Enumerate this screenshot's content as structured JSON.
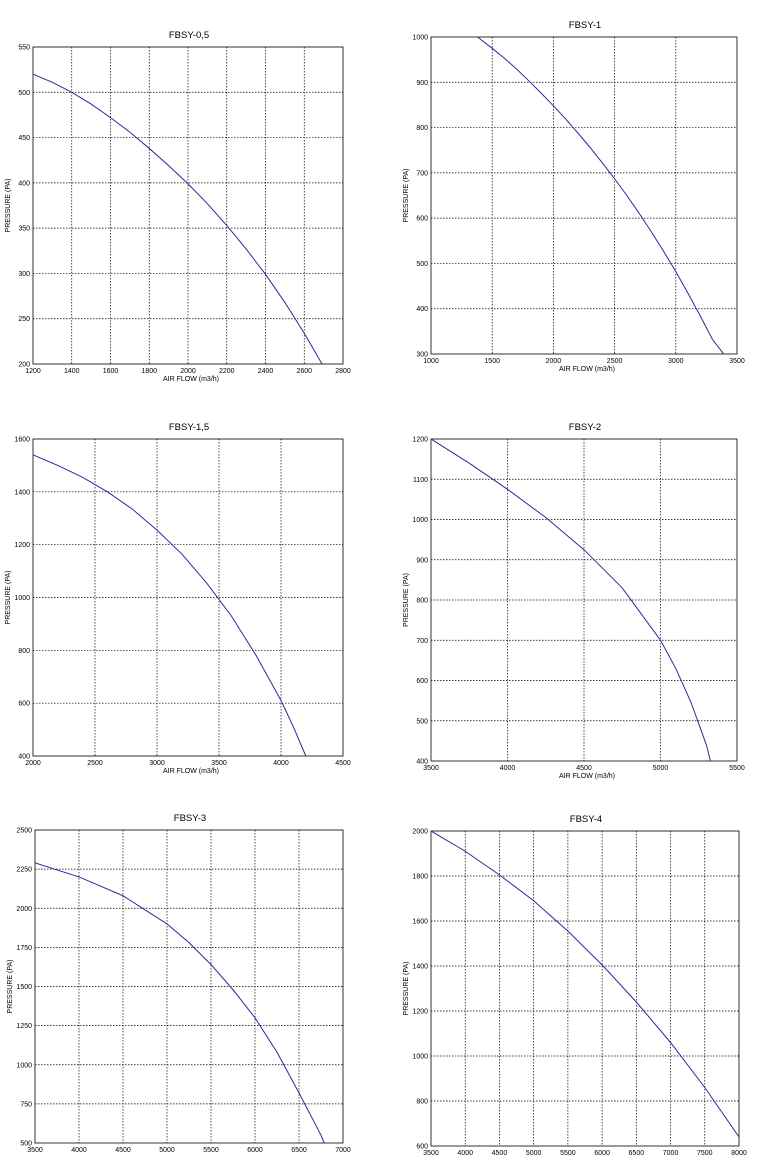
{
  "chart_data": [
    {
      "type": "line",
      "title": "FBSY-0,5",
      "xlabel": "AIR FLOW (m3/h)",
      "ylabel": "PRESSURE (PA)",
      "xlim": [
        1200,
        2800
      ],
      "ylim": [
        200,
        550
      ],
      "xticks": [
        1200,
        1400,
        1600,
        1800,
        2000,
        2200,
        2400,
        2600,
        2800
      ],
      "yticks": [
        200,
        250,
        300,
        350,
        400,
        450,
        500,
        550
      ],
      "grid": true,
      "color": "#2b2b9a",
      "series": [
        {
          "x": [
            1200,
            1300,
            1400,
            1500,
            1600,
            1700,
            1800,
            1900,
            2000,
            2100,
            2200,
            2300,
            2400,
            2500,
            2600,
            2700
          ],
          "y": [
            520,
            511,
            500,
            487,
            472,
            456,
            438,
            419,
            399,
            377,
            353,
            327,
            299,
            268,
            234,
            197
          ]
        }
      ]
    },
    {
      "type": "line",
      "title": "FBSY-1",
      "xlabel": "AIR FLOW (m3/h)",
      "ylabel": "PRESSURE (PA)",
      "xlim": [
        1000,
        3500
      ],
      "ylim": [
        300,
        1000
      ],
      "xticks": [
        1000,
        1500,
        2000,
        2500,
        3000,
        3500
      ],
      "yticks": [
        300,
        400,
        500,
        600,
        700,
        800,
        900,
        1000
      ],
      "grid": true,
      "color": "#2b2b9a",
      "series": [
        {
          "x": [
            1380,
            1500,
            1600,
            1700,
            1800,
            1900,
            2000,
            2100,
            2200,
            2300,
            2400,
            2500,
            2600,
            2700,
            2800,
            2900,
            3000,
            3100,
            3200,
            3300,
            3400
          ],
          "y": [
            1000,
            975,
            953,
            929,
            903,
            876,
            848,
            819,
            788,
            756,
            722,
            687,
            650,
            611,
            570,
            527,
            482,
            434,
            384,
            332,
            297
          ]
        }
      ]
    },
    {
      "type": "line",
      "title": "FBSY-1,5",
      "xlabel": "AIR FLOW (m3/h)",
      "ylabel": "PRESSURE (PA)",
      "xlim": [
        2000,
        4500
      ],
      "ylim": [
        400,
        1600
      ],
      "xticks": [
        2000,
        2500,
        3000,
        3500,
        4000,
        4500
      ],
      "yticks": [
        400,
        600,
        800,
        1000,
        1200,
        1400,
        1600
      ],
      "grid": true,
      "color": "#2b2b9a",
      "series": [
        {
          "x": [
            2000,
            2200,
            2400,
            2600,
            2800,
            3000,
            3200,
            3400,
            3600,
            3800,
            4000,
            4100,
            4200
          ],
          "y": [
            1540,
            1500,
            1455,
            1400,
            1335,
            1255,
            1165,
            1055,
            930,
            780,
            610,
            510,
            400
          ]
        }
      ]
    },
    {
      "type": "line",
      "title": "FBSY-2",
      "xlabel": "AIR FLOW (m3/h)",
      "ylabel": "PRESSURE (PA)",
      "xlim": [
        3500,
        5500
      ],
      "ylim": [
        400,
        1200
      ],
      "xticks": [
        3500,
        4000,
        4500,
        5000,
        5500
      ],
      "yticks": [
        400,
        500,
        600,
        700,
        800,
        900,
        1000,
        1100,
        1200
      ],
      "grid": true,
      "color": "#2b2b9a",
      "series": [
        {
          "x": [
            3500,
            3750,
            4000,
            4250,
            4500,
            4750,
            5000,
            5100,
            5200,
            5300,
            5330
          ],
          "y": [
            1200,
            1140,
            1075,
            1005,
            925,
            830,
            700,
            630,
            545,
            440,
            395
          ]
        }
      ]
    },
    {
      "type": "line",
      "title": "FBSY-3",
      "xlabel": "",
      "ylabel": "PRESSURE (PA)",
      "xlim": [
        3500,
        7000
      ],
      "ylim": [
        500,
        2500
      ],
      "xticks": [
        3500,
        4000,
        4500,
        5000,
        5500,
        6000,
        6500,
        7000
      ],
      "yticks": [
        500,
        750,
        1000,
        1250,
        1500,
        1750,
        2000,
        2250,
        2500
      ],
      "grid": true,
      "color": "#2b2b9a",
      "series": [
        {
          "x": [
            3500,
            4000,
            4500,
            5000,
            5250,
            5500,
            5750,
            6000,
            6250,
            6500,
            6750,
            6800
          ],
          "y": [
            2290,
            2200,
            2080,
            1900,
            1780,
            1640,
            1480,
            1300,
            1080,
            820,
            550,
            480
          ]
        }
      ]
    },
    {
      "type": "line",
      "title": "FBSY-4",
      "xlabel": "",
      "ylabel": "PRESSURE (PA)",
      "xlim": [
        3500,
        8000
      ],
      "ylim": [
        600,
        2000
      ],
      "xticks": [
        3500,
        4000,
        4500,
        5000,
        5500,
        6000,
        6500,
        7000,
        7500,
        8000
      ],
      "yticks": [
        600,
        800,
        1000,
        1200,
        1400,
        1600,
        1800,
        2000
      ],
      "grid": true,
      "color": "#2b2b9a",
      "series": [
        {
          "x": [
            3500,
            4000,
            4500,
            5000,
            5500,
            6000,
            6500,
            7000,
            7500,
            8000
          ],
          "y": [
            2000,
            1910,
            1805,
            1690,
            1555,
            1405,
            1240,
            1060,
            860,
            640
          ]
        }
      ]
    }
  ]
}
